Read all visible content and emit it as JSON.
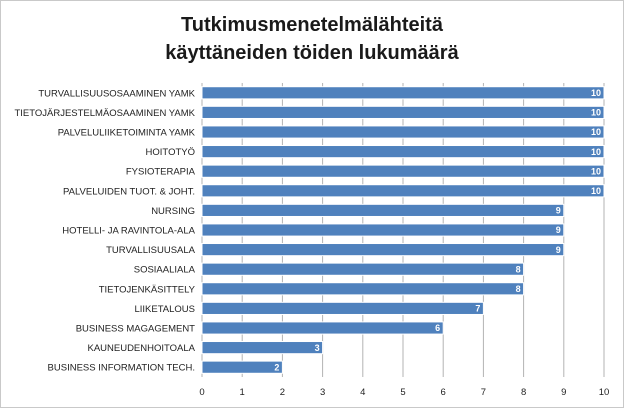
{
  "chart_data": {
    "type": "bar",
    "orientation": "horizontal",
    "title": "Tutkimusmenetelmälähteitä käyttäneiden töiden lukumäärä",
    "categories": [
      "TURVALLISUUSOSAAMINEN YAMK",
      "TIETOJÄRJESTELMÄOSAAMINEN YAMK",
      "PALVELULIIKETOIMINTA YAMK",
      "HOITOTYÖ",
      "FYSIOTERAPIA",
      "PALVELUIDEN TUOT. & JOHT.",
      "NURSING",
      "HOTELLI- JA RAVINTOLA-ALA",
      "TURVALLISUUSALA",
      "SOSIAALIALA",
      "TIETOJENKÄSITTELY",
      "LIIKETALOUS",
      "BUSINESS MAGAGEMENT",
      "KAUNEUDENHOITOALA",
      "BUSINESS INFORMATION TECH."
    ],
    "values": [
      10,
      10,
      10,
      10,
      10,
      10,
      9,
      9,
      9,
      8,
      8,
      7,
      6,
      3,
      2
    ],
    "xlim": [
      0,
      10
    ],
    "xticks": [
      "0",
      "1",
      "2",
      "3",
      "4",
      "5",
      "6",
      "7",
      "8",
      "9",
      "10"
    ],
    "grid": "vertical",
    "legend": "none",
    "colors": {
      "bar": "#4f81bd",
      "bar_edge": "#ffffff",
      "grid": "#b3b3b3",
      "text": "#222222"
    }
  }
}
